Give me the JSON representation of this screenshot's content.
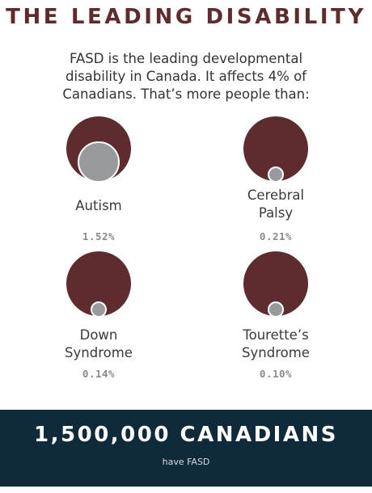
{
  "title": "THE LEADING DISABILITY",
  "intro": {
    "line1": "FASD is the leading developmental",
    "line2": "disability in Canada. It affects 4% of",
    "line3": "Canadians. That’s more people than:"
  },
  "reference": {
    "fasd_percent": 4
  },
  "items": [
    {
      "label_line1": "Autism",
      "label_line2": "",
      "percent_text": "1.52%",
      "value": 1.52
    },
    {
      "label_line1": "Cerebral",
      "label_line2": "Palsy",
      "percent_text": "0.21%",
      "value": 0.21
    },
    {
      "label_line1": "Down",
      "label_line2": "Syndrome",
      "percent_text": "0.14%",
      "value": 0.14
    },
    {
      "label_line1": "Tourette’s",
      "label_line2": "Syndrome",
      "percent_text": "0.10%",
      "value": 0.1
    }
  ],
  "footer": {
    "headline": "1,500,000 CANADIANS",
    "sub": "have FASD"
  },
  "colors": {
    "accent": "#5e2b2e",
    "comparison": "#999a9c",
    "footer_bg": "#0f2a3a"
  }
}
